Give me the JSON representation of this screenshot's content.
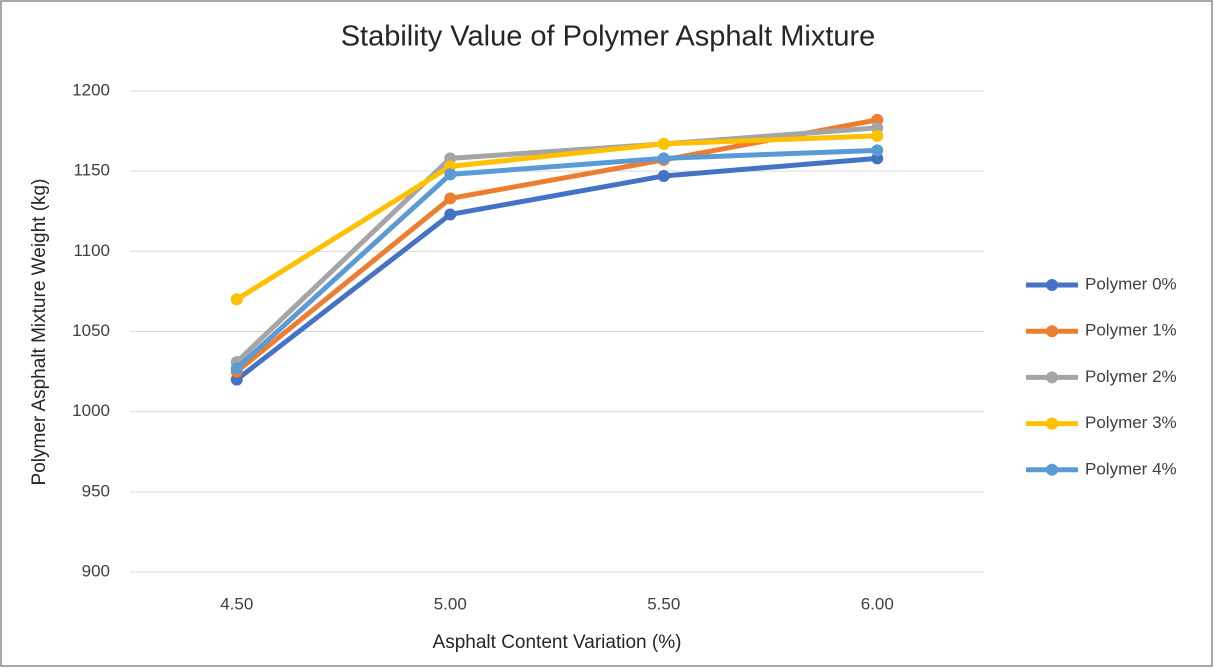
{
  "chart_data": {
    "type": "line",
    "title": "Stability Value of Polymer Asphalt Mixture",
    "x_label": "Asphalt Content Variation (%)",
    "y_label": "Polymer Asphalt Mixture Weight (kg)",
    "categories": [
      "4.50",
      "5.00",
      "5.50",
      "6.00"
    ],
    "series": [
      {
        "name": "Polymer 0%",
        "color": "#4472c4",
        "values": [
          1020,
          1123,
          1147,
          1158
        ]
      },
      {
        "name": "Polymer 1%",
        "color": "#ed7d31",
        "values": [
          1025,
          1133,
          1157,
          1182
        ]
      },
      {
        "name": "Polymer 2%",
        "color": "#a5a5a5",
        "values": [
          1031,
          1158,
          1167,
          1177
        ]
      },
      {
        "name": "Polymer 3%",
        "color": "#ffc000",
        "values": [
          1070,
          1153,
          1167,
          1172
        ]
      },
      {
        "name": "Polymer 4%",
        "color": "#5b9bd5",
        "values": [
          1027,
          1148,
          1158,
          1163
        ]
      }
    ],
    "ylim": [
      900,
      1200
    ],
    "yticks": [
      900,
      950,
      1000,
      1050,
      1100,
      1150,
      1200
    ],
    "grid": true,
    "legend": "right"
  }
}
